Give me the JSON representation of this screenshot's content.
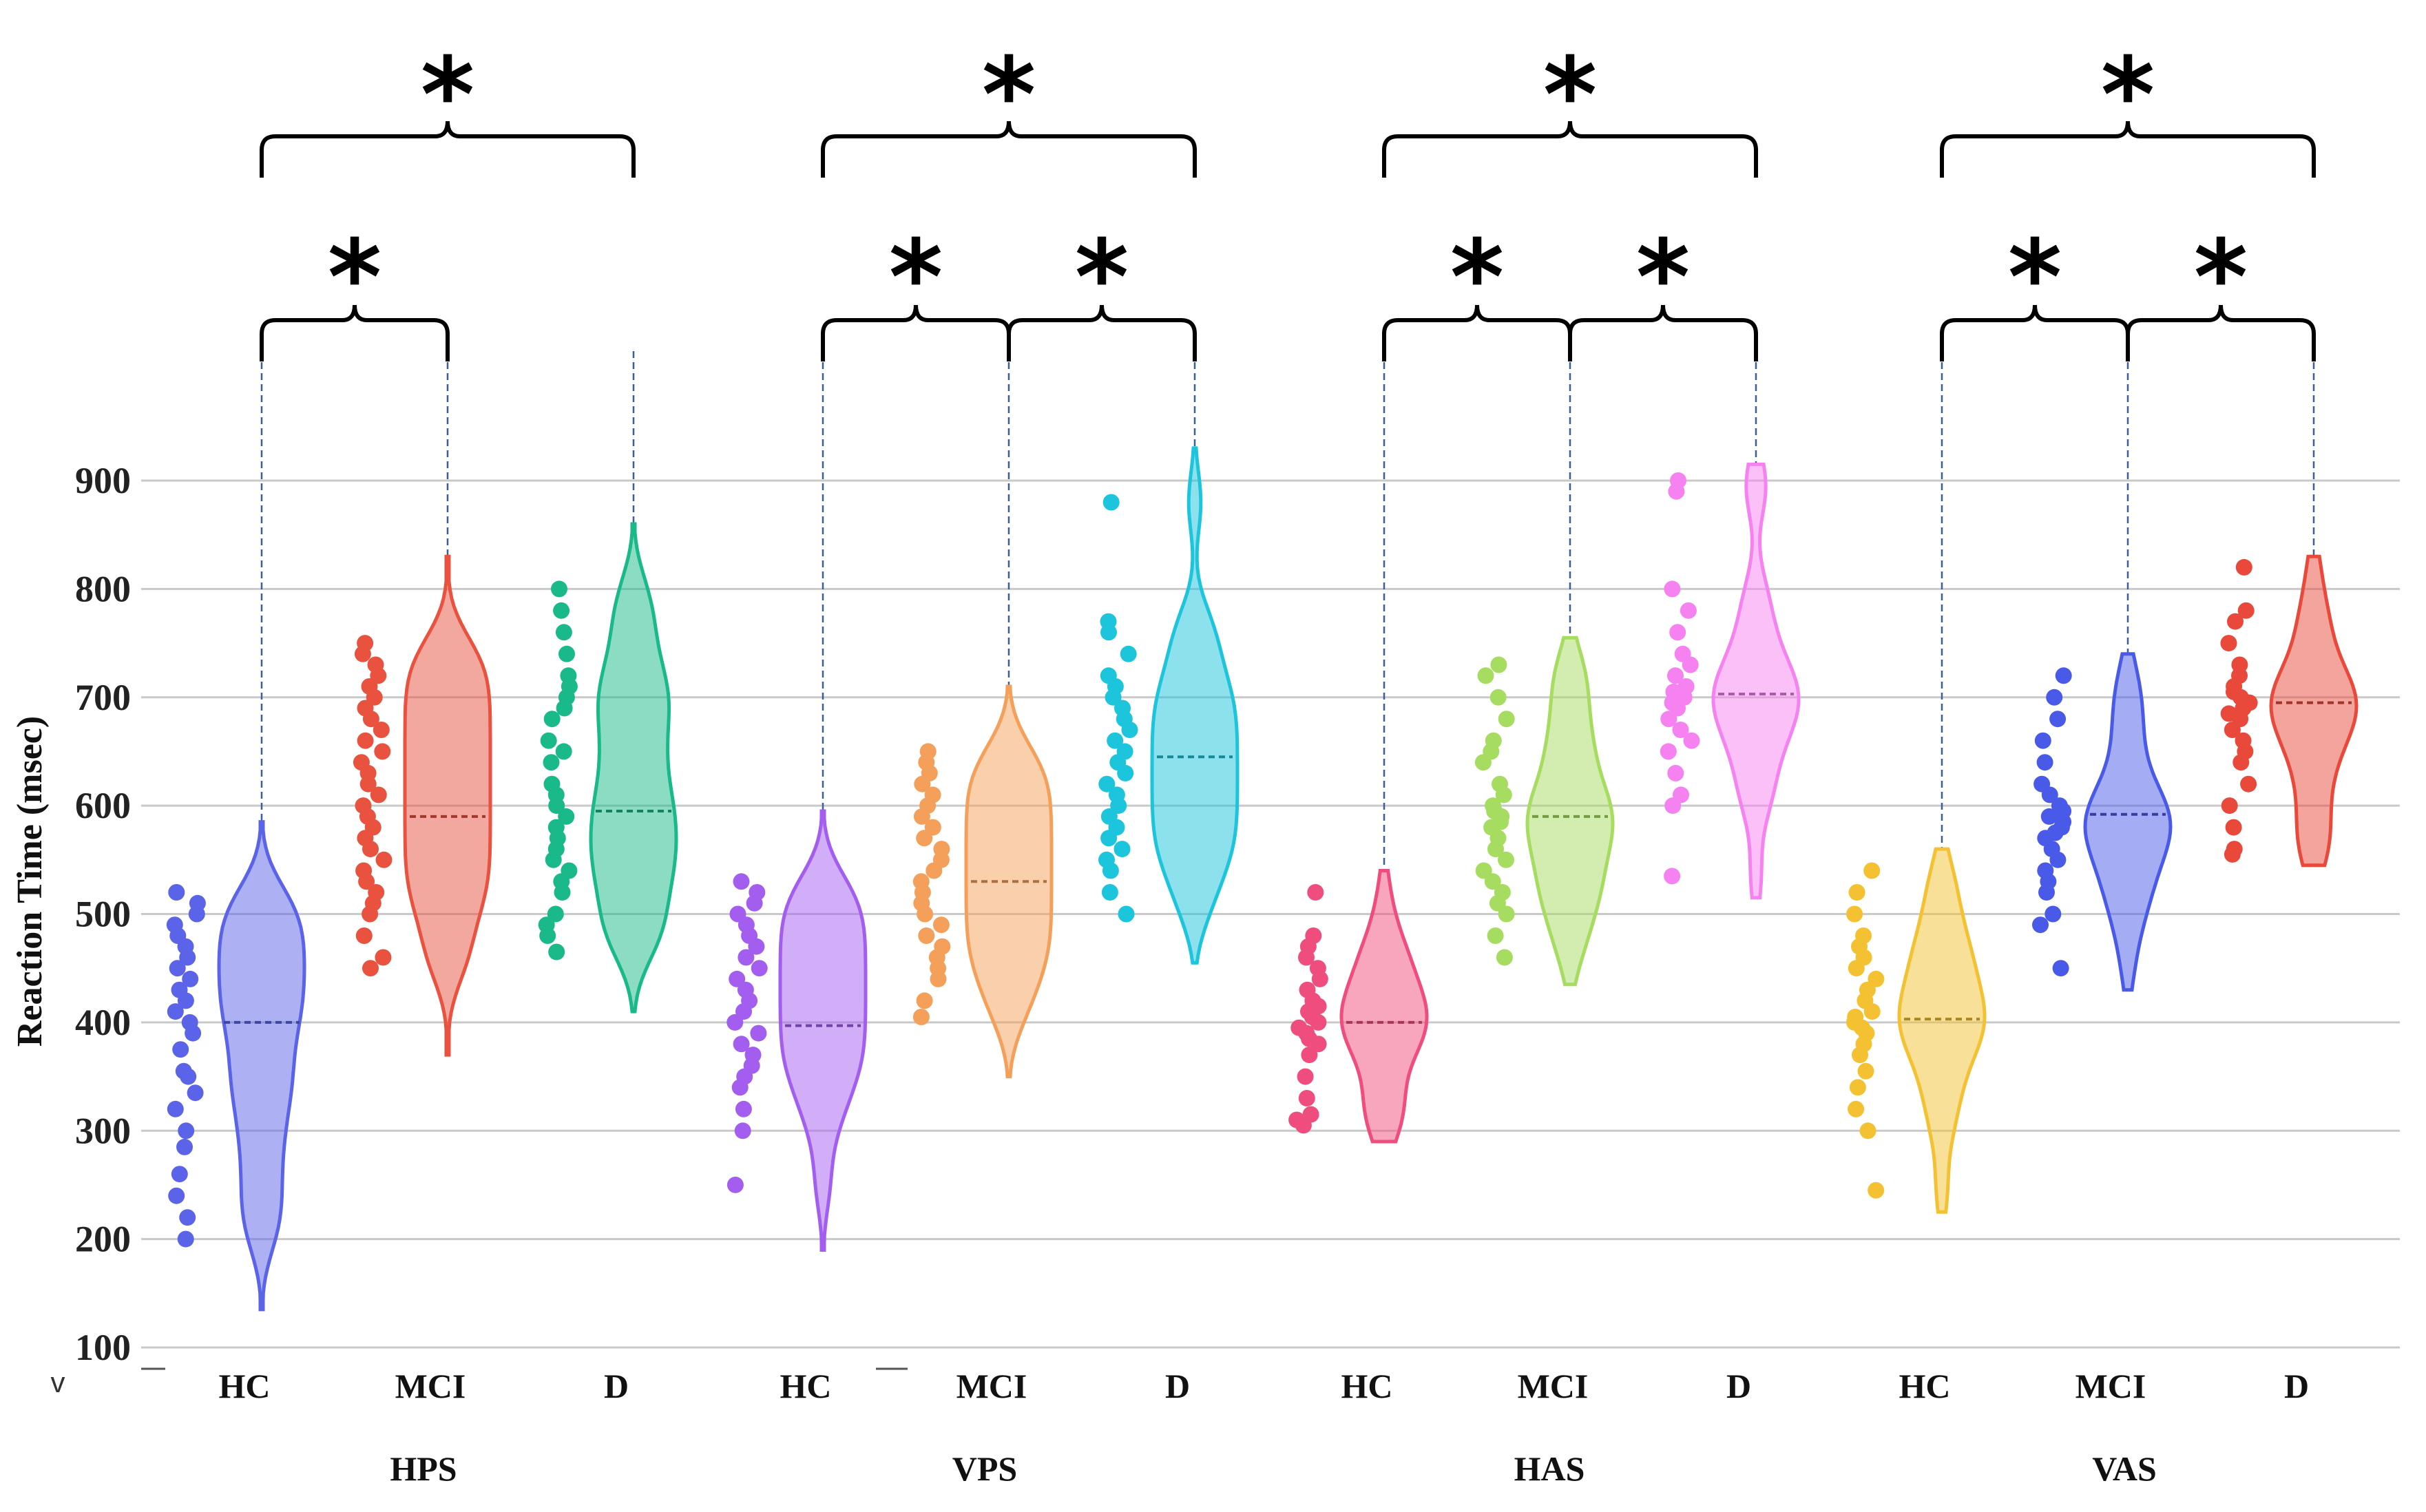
{
  "chart_data": {
    "type": "violin",
    "ylabel": "Reaction Time (msec)",
    "ylim": [
      100,
      900
    ],
    "yticks": [
      "100",
      "200",
      "300",
      "400",
      "500",
      "600",
      "700",
      "800",
      "900"
    ],
    "grid": true,
    "stray_label": "v",
    "groups": [
      {
        "name": "HPS",
        "significance": [
          "*",
          "*"
        ],
        "categories": [
          {
            "label": "HC",
            "color": "#5b63e8",
            "median": 400,
            "min": 135,
            "max": 585,
            "points": [
              200,
              220,
              240,
              260,
              285,
              300,
              320,
              335,
              350,
              355,
              375,
              390,
              400,
              410,
              420,
              430,
              440,
              450,
              460,
              470,
              480,
              490,
              500,
              510,
              520
            ]
          },
          {
            "label": "MCI",
            "color": "#e8523f",
            "median": 590,
            "min": 370,
            "max": 830,
            "points": [
              450,
              460,
              480,
              500,
              510,
              520,
              530,
              540,
              550,
              560,
              570,
              580,
              590,
              600,
              610,
              620,
              630,
              640,
              650,
              660,
              670,
              680,
              690,
              700,
              710,
              720,
              730,
              740,
              750
            ]
          },
          {
            "label": "D",
            "color": "#19b98a",
            "median": 595,
            "min": 410,
            "max": 860,
            "points": [
              465,
              480,
              490,
              500,
              520,
              530,
              540,
              550,
              560,
              570,
              580,
              590,
              600,
              610,
              620,
              640,
              650,
              660,
              680,
              690,
              700,
              710,
              720,
              740,
              760,
              780,
              800
            ]
          }
        ]
      },
      {
        "name": "VPS",
        "significance": [
          "*",
          "*",
          "*"
        ],
        "categories": [
          {
            "label": "HC",
            "color": "#a35ef0",
            "median": 397,
            "min": 190,
            "max": 595,
            "points": [
              250,
              300,
              320,
              340,
              350,
              360,
              370,
              380,
              390,
              400,
              410,
              420,
              430,
              440,
              450,
              460,
              470,
              480,
              490,
              500,
              510,
              520,
              530
            ]
          },
          {
            "label": "MCI",
            "color": "#f5a05a",
            "median": 530,
            "min": 350,
            "max": 710,
            "points": [
              405,
              420,
              440,
              450,
              460,
              470,
              480,
              490,
              500,
              510,
              520,
              530,
              540,
              550,
              560,
              570,
              580,
              590,
              600,
              610,
              620,
              630,
              640,
              650
            ]
          },
          {
            "label": "D",
            "color": "#1cc4dc",
            "median": 645,
            "min": 455,
            "max": 930,
            "points": [
              500,
              520,
              540,
              550,
              560,
              570,
              580,
              590,
              600,
              610,
              620,
              630,
              640,
              650,
              660,
              670,
              680,
              690,
              700,
              710,
              720,
              740,
              760,
              770,
              880
            ]
          }
        ]
      },
      {
        "name": "HAS",
        "significance": [
          "*",
          "*",
          "*"
        ],
        "categories": [
          {
            "label": "HC",
            "color": "#ef4d7e",
            "median": 400,
            "min": 290,
            "max": 540,
            "points": [
              305,
              310,
              315,
              330,
              350,
              370,
              380,
              385,
              390,
              395,
              400,
              405,
              410,
              415,
              420,
              430,
              440,
              450,
              460,
              470,
              480,
              520
            ]
          },
          {
            "label": "MCI",
            "color": "#a6dc5f",
            "median": 590,
            "min": 435,
            "max": 755,
            "points": [
              460,
              480,
              500,
              510,
              520,
              530,
              540,
              550,
              560,
              570,
              580,
              585,
              590,
              595,
              600,
              610,
              620,
              640,
              650,
              660,
              680,
              700,
              720,
              730
            ]
          },
          {
            "label": "D",
            "color": "#f582f0",
            "median": 703,
            "min": 515,
            "max": 915,
            "points": [
              535,
              600,
              610,
              630,
              650,
              660,
              670,
              680,
              690,
              695,
              700,
              705,
              710,
              720,
              730,
              740,
              760,
              780,
              800,
              890,
              900
            ]
          }
        ]
      },
      {
        "name": "VAS",
        "significance": [
          "*",
          "*",
          "*"
        ],
        "categories": [
          {
            "label": "HC",
            "color": "#f4c132",
            "median": 403,
            "min": 225,
            "max": 560,
            "points": [
              245,
              300,
              320,
              340,
              355,
              370,
              380,
              390,
              395,
              400,
              405,
              410,
              420,
              430,
              440,
              450,
              460,
              470,
              480,
              500,
              520,
              540
            ]
          },
          {
            "label": "MCI",
            "color": "#4a5ae8",
            "median": 592,
            "min": 430,
            "max": 740,
            "points": [
              450,
              490,
              500,
              520,
              530,
              540,
              550,
              560,
              570,
              575,
              580,
              585,
              590,
              595,
              600,
              610,
              620,
              640,
              660,
              680,
              700,
              720
            ]
          },
          {
            "label": "D",
            "color": "#e8493a",
            "median": 695,
            "min": 545,
            "max": 830,
            "points": [
              555,
              560,
              580,
              600,
              620,
              640,
              650,
              660,
              670,
              680,
              685,
              690,
              695,
              700,
              705,
              710,
              720,
              730,
              750,
              770,
              780,
              820
            ]
          }
        ]
      }
    ]
  }
}
